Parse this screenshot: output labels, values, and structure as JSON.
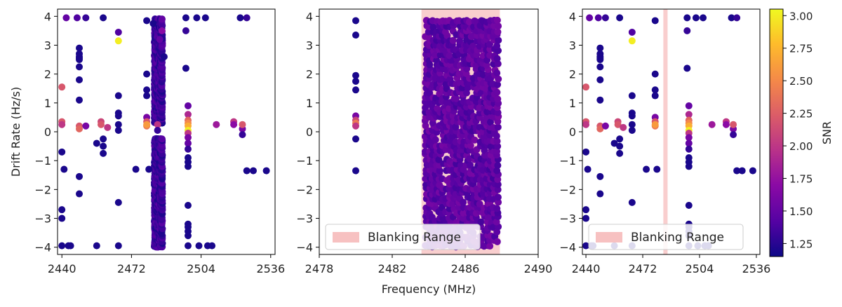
{
  "chart_data": [
    {
      "type": "scatter",
      "panel": "left",
      "xlabel": "",
      "ylabel": "Drift Rate (Hz/s)",
      "xlim": [
        2438,
        2538
      ],
      "ylim": [
        -4.25,
        4.25
      ],
      "xticks": [
        "2440",
        "2472",
        "2504",
        "2536"
      ],
      "yticks": [
        "4",
        "3",
        "2",
        "1",
        "0",
        "−1",
        "−2",
        "−3",
        "−4"
      ],
      "color_variable": "SNR",
      "points": [
        [
          2440,
          1.55,
          2.2
        ],
        [
          2440,
          0.35,
          2.2
        ],
        [
          2440,
          0.25,
          2.0
        ],
        [
          2440,
          -0.7,
          1.2
        ],
        [
          2440,
          -2.7,
          1.2
        ],
        [
          2440,
          -3.0,
          1.2
        ],
        [
          2440,
          -3.95,
          1.2
        ],
        [
          2441,
          -1.3,
          1.2
        ],
        [
          2442,
          3.95,
          1.5
        ],
        [
          2443,
          -3.95,
          1.2
        ],
        [
          2444,
          -3.95,
          1.2
        ],
        [
          2447,
          3.95,
          1.4
        ],
        [
          2448,
          2.9,
          1.2
        ],
        [
          2448,
          2.7,
          1.2
        ],
        [
          2448,
          2.6,
          1.2
        ],
        [
          2448,
          2.55,
          1.2
        ],
        [
          2448,
          2.5,
          1.2
        ],
        [
          2448,
          2.25,
          1.2
        ],
        [
          2448,
          1.8,
          1.2
        ],
        [
          2448,
          1.1,
          1.2
        ],
        [
          2448,
          0.2,
          2.2
        ],
        [
          2448,
          0.1,
          2.3
        ],
        [
          2448,
          -1.55,
          1.2
        ],
        [
          2448,
          -2.15,
          1.2
        ],
        [
          2451,
          3.95,
          1.3
        ],
        [
          2451,
          0.2,
          1.6
        ],
        [
          2456,
          -0.4,
          1.2
        ],
        [
          2456,
          -3.95,
          1.2
        ],
        [
          2458,
          0.35,
          2.1
        ],
        [
          2458,
          0.25,
          2.2
        ],
        [
          2459,
          -0.25,
          1.2
        ],
        [
          2459,
          -0.5,
          1.2
        ],
        [
          2459,
          -0.75,
          1.2
        ],
        [
          2459,
          3.95,
          1.2
        ],
        [
          2461,
          0.15,
          2.0
        ],
        [
          2466,
          3.45,
          1.4
        ],
        [
          2466,
          3.15,
          3.0
        ],
        [
          2466,
          1.25,
          1.2
        ],
        [
          2466,
          0.65,
          1.2
        ],
        [
          2466,
          0.55,
          1.2
        ],
        [
          2466,
          0.25,
          1.2
        ],
        [
          2466,
          0.05,
          1.2
        ],
        [
          2466,
          -2.45,
          1.2
        ],
        [
          2466,
          -3.95,
          1.2
        ],
        [
          2474,
          -1.3,
          1.2
        ],
        [
          2479,
          3.85,
          1.2
        ],
        [
          2479,
          2.0,
          1.2
        ],
        [
          2479,
          1.45,
          1.2
        ],
        [
          2479,
          1.25,
          1.2
        ],
        [
          2479,
          0.5,
          1.6
        ],
        [
          2479,
          0.35,
          2.2
        ],
        [
          2479,
          0.2,
          2.4
        ],
        [
          2479,
          0.25,
          2.6
        ],
        [
          2480,
          -1.3,
          1.2
        ],
        [
          2482,
          3.75,
          1.2
        ],
        [
          2484,
          0.25,
          2.0
        ],
        [
          2486,
          3.5,
          1.7
        ],
        [
          2485,
          3.2,
          1.5
        ],
        [
          2487,
          2.6,
          1.2
        ],
        [
          2486,
          3.9,
          1.5
        ],
        [
          2484,
          0.05,
          1.3
        ],
        [
          2497,
          3.95,
          1.2
        ],
        [
          2497,
          3.5,
          1.3
        ],
        [
          2497,
          2.2,
          1.2
        ],
        [
          2498,
          0.9,
          1.5
        ],
        [
          2498,
          0.6,
          1.9
        ],
        [
          2498,
          0.4,
          2.3
        ],
        [
          2498,
          0.3,
          2.5
        ],
        [
          2498,
          0.2,
          2.7
        ],
        [
          2498,
          0.05,
          3.0
        ],
        [
          2498,
          -0.05,
          2.0
        ],
        [
          2498,
          -0.2,
          1.6
        ],
        [
          2498,
          -0.4,
          1.5
        ],
        [
          2498,
          -0.6,
          1.3
        ],
        [
          2498,
          -0.9,
          1.2
        ],
        [
          2498,
          -1.05,
          1.2
        ],
        [
          2498,
          -1.2,
          1.2
        ],
        [
          2498,
          -2.55,
          1.2
        ],
        [
          2498,
          -3.2,
          1.2
        ],
        [
          2498,
          -3.3,
          1.2
        ],
        [
          2498,
          -3.45,
          1.2
        ],
        [
          2498,
          -3.6,
          1.2
        ],
        [
          2498,
          -3.95,
          1.2
        ],
        [
          2502,
          3.95,
          1.2
        ],
        [
          2503,
          -3.95,
          1.2
        ],
        [
          2506,
          3.95,
          1.2
        ],
        [
          2507,
          -3.95,
          1.2
        ],
        [
          2509,
          -3.95,
          1.2
        ],
        [
          2511,
          0.25,
          1.8
        ],
        [
          2519,
          0.35,
          2.0
        ],
        [
          2519,
          0.25,
          1.7
        ],
        [
          2522,
          3.95,
          1.2
        ],
        [
          2523,
          0.1,
          1.6
        ],
        [
          2523,
          -0.1,
          1.3
        ],
        [
          2523,
          0.25,
          2.2
        ],
        [
          2525,
          3.95,
          1.3
        ],
        [
          2525,
          -1.35,
          1.2
        ],
        [
          2528,
          -1.35,
          1.2
        ],
        [
          2534,
          -1.35,
          1.2
        ]
      ],
      "dense_bands": [
        {
          "x_from": 2482.5,
          "x_to": 2486.5,
          "y_from": -4.0,
          "y_to": -0.2,
          "snr": 1.2
        },
        {
          "x_from": 2482.5,
          "x_to": 2486.5,
          "y_from": 0.3,
          "y_to": 3.95,
          "snr": 1.2
        }
      ]
    },
    {
      "type": "scatter",
      "panel": "middle",
      "xlabel": "Frequency (MHz)",
      "ylabel": "",
      "xlim": [
        2478,
        2490
      ],
      "ylim": [
        -4.25,
        4.25
      ],
      "xticks": [
        "2478",
        "2482",
        "2486",
        "2490"
      ],
      "yticks": [
        "4",
        "3",
        "2",
        "1",
        "0",
        "−1",
        "−2",
        "−3",
        "−4"
      ],
      "color_variable": "SNR",
      "blanking_range": [
        2483.6,
        2487.9
      ],
      "legend": {
        "label": "Blanking Range",
        "position": "lower-left"
      },
      "points": [
        [
          2480.0,
          3.85,
          1.2
        ],
        [
          2480.0,
          3.35,
          1.2
        ],
        [
          2480.0,
          1.95,
          1.2
        ],
        [
          2480.0,
          1.75,
          1.2
        ],
        [
          2480.0,
          1.45,
          1.2
        ],
        [
          2480.0,
          0.55,
          1.6
        ],
        [
          2480.0,
          0.4,
          2.1
        ],
        [
          2480.0,
          0.3,
          2.4
        ],
        [
          2480.0,
          0.2,
          2.0
        ],
        [
          2480.0,
          -0.25,
          1.2
        ],
        [
          2480.0,
          -1.35,
          1.2
        ]
      ],
      "dense_bands": [
        {
          "x_from": 2483.8,
          "x_to": 2487.9,
          "y_from": -4.0,
          "y_to": 3.95,
          "snr": 1.35,
          "density": "full"
        }
      ]
    },
    {
      "type": "scatter",
      "panel": "right",
      "xlabel": "",
      "ylabel": "",
      "xlim": [
        2438,
        2538
      ],
      "ylim": [
        -4.25,
        4.25
      ],
      "xticks": [
        "2440",
        "2472",
        "2504",
        "2536"
      ],
      "yticks": [
        "4",
        "3",
        "2",
        "1",
        "0",
        "−1",
        "−2",
        "−3",
        "−4"
      ],
      "color_variable": "SNR",
      "blanking_range": [
        2483.6,
        2486.0
      ],
      "legend": {
        "label": "Blanking Range",
        "position": "lower-left"
      },
      "colorbar": {
        "label": "SNR",
        "range": [
          1.15,
          3.05
        ],
        "ticks": [
          "3.00",
          "2.75",
          "2.50",
          "2.25",
          "2.00",
          "1.75",
          "1.50",
          "1.25"
        ],
        "colormap": "plasma"
      },
      "points": [
        [
          2440,
          1.55,
          2.2
        ],
        [
          2440,
          0.35,
          2.2
        ],
        [
          2440,
          0.25,
          2.0
        ],
        [
          2440,
          -0.7,
          1.2
        ],
        [
          2440,
          -2.7,
          1.2
        ],
        [
          2440,
          -3.0,
          1.2
        ],
        [
          2440,
          -3.95,
          1.2
        ],
        [
          2441,
          -1.3,
          1.2
        ],
        [
          2442,
          3.95,
          1.5
        ],
        [
          2443,
          -3.95,
          1.2
        ],
        [
          2444,
          -3.95,
          1.2
        ],
        [
          2447,
          3.95,
          1.4
        ],
        [
          2448,
          2.9,
          1.2
        ],
        [
          2448,
          2.7,
          1.2
        ],
        [
          2448,
          2.6,
          1.2
        ],
        [
          2448,
          2.55,
          1.2
        ],
        [
          2448,
          2.5,
          1.2
        ],
        [
          2448,
          2.25,
          1.2
        ],
        [
          2448,
          1.8,
          1.2
        ],
        [
          2448,
          1.1,
          1.2
        ],
        [
          2448,
          0.2,
          2.2
        ],
        [
          2448,
          0.1,
          2.3
        ],
        [
          2448,
          -1.55,
          1.2
        ],
        [
          2448,
          -2.15,
          1.2
        ],
        [
          2451,
          3.95,
          1.3
        ],
        [
          2451,
          0.2,
          1.6
        ],
        [
          2456,
          -0.4,
          1.2
        ],
        [
          2456,
          -3.95,
          1.2
        ],
        [
          2458,
          0.35,
          2.1
        ],
        [
          2458,
          0.25,
          2.2
        ],
        [
          2459,
          -0.25,
          1.2
        ],
        [
          2459,
          -0.5,
          1.2
        ],
        [
          2459,
          -0.75,
          1.2
        ],
        [
          2459,
          3.95,
          1.2
        ],
        [
          2461,
          0.15,
          2.0
        ],
        [
          2466,
          3.45,
          1.4
        ],
        [
          2466,
          3.15,
          3.0
        ],
        [
          2466,
          1.25,
          1.2
        ],
        [
          2466,
          0.65,
          1.2
        ],
        [
          2466,
          0.55,
          1.2
        ],
        [
          2466,
          0.25,
          1.2
        ],
        [
          2466,
          0.05,
          1.2
        ],
        [
          2466,
          -2.45,
          1.2
        ],
        [
          2466,
          -3.95,
          1.2
        ],
        [
          2474,
          -1.3,
          1.2
        ],
        [
          2479,
          3.85,
          1.2
        ],
        [
          2479,
          2.0,
          1.2
        ],
        [
          2479,
          1.45,
          1.2
        ],
        [
          2479,
          1.25,
          1.2
        ],
        [
          2479,
          0.5,
          1.6
        ],
        [
          2479,
          0.35,
          2.2
        ],
        [
          2479,
          0.2,
          2.4
        ],
        [
          2479,
          0.25,
          2.6
        ],
        [
          2480,
          -1.3,
          1.2
        ],
        [
          2497,
          3.95,
          1.2
        ],
        [
          2497,
          3.5,
          1.3
        ],
        [
          2497,
          2.2,
          1.2
        ],
        [
          2498,
          0.9,
          1.5
        ],
        [
          2498,
          0.6,
          1.9
        ],
        [
          2498,
          0.4,
          2.3
        ],
        [
          2498,
          0.3,
          2.5
        ],
        [
          2498,
          0.2,
          2.7
        ],
        [
          2498,
          0.05,
          3.0
        ],
        [
          2498,
          -0.05,
          2.0
        ],
        [
          2498,
          -0.2,
          1.6
        ],
        [
          2498,
          -0.4,
          1.5
        ],
        [
          2498,
          -0.6,
          1.3
        ],
        [
          2498,
          -0.9,
          1.2
        ],
        [
          2498,
          -1.05,
          1.2
        ],
        [
          2498,
          -1.2,
          1.2
        ],
        [
          2498,
          -2.55,
          1.2
        ],
        [
          2498,
          -3.2,
          1.2
        ],
        [
          2498,
          -3.3,
          1.2
        ],
        [
          2498,
          -3.45,
          1.2
        ],
        [
          2498,
          -3.6,
          1.2
        ],
        [
          2498,
          -3.95,
          1.2
        ],
        [
          2502,
          3.95,
          1.2
        ],
        [
          2503,
          -3.95,
          1.2
        ],
        [
          2506,
          3.95,
          1.2
        ],
        [
          2507,
          -3.95,
          1.2
        ],
        [
          2509,
          -3.95,
          1.2
        ],
        [
          2511,
          0.25,
          1.8
        ],
        [
          2519,
          0.35,
          2.0
        ],
        [
          2519,
          0.25,
          1.7
        ],
        [
          2522,
          3.95,
          1.2
        ],
        [
          2523,
          0.1,
          1.6
        ],
        [
          2523,
          -0.1,
          1.3
        ],
        [
          2523,
          0.25,
          2.2
        ],
        [
          2525,
          3.95,
          1.3
        ],
        [
          2525,
          -1.35,
          1.2
        ],
        [
          2528,
          -1.35,
          1.2
        ],
        [
          2534,
          -1.35,
          1.2
        ]
      ]
    }
  ]
}
